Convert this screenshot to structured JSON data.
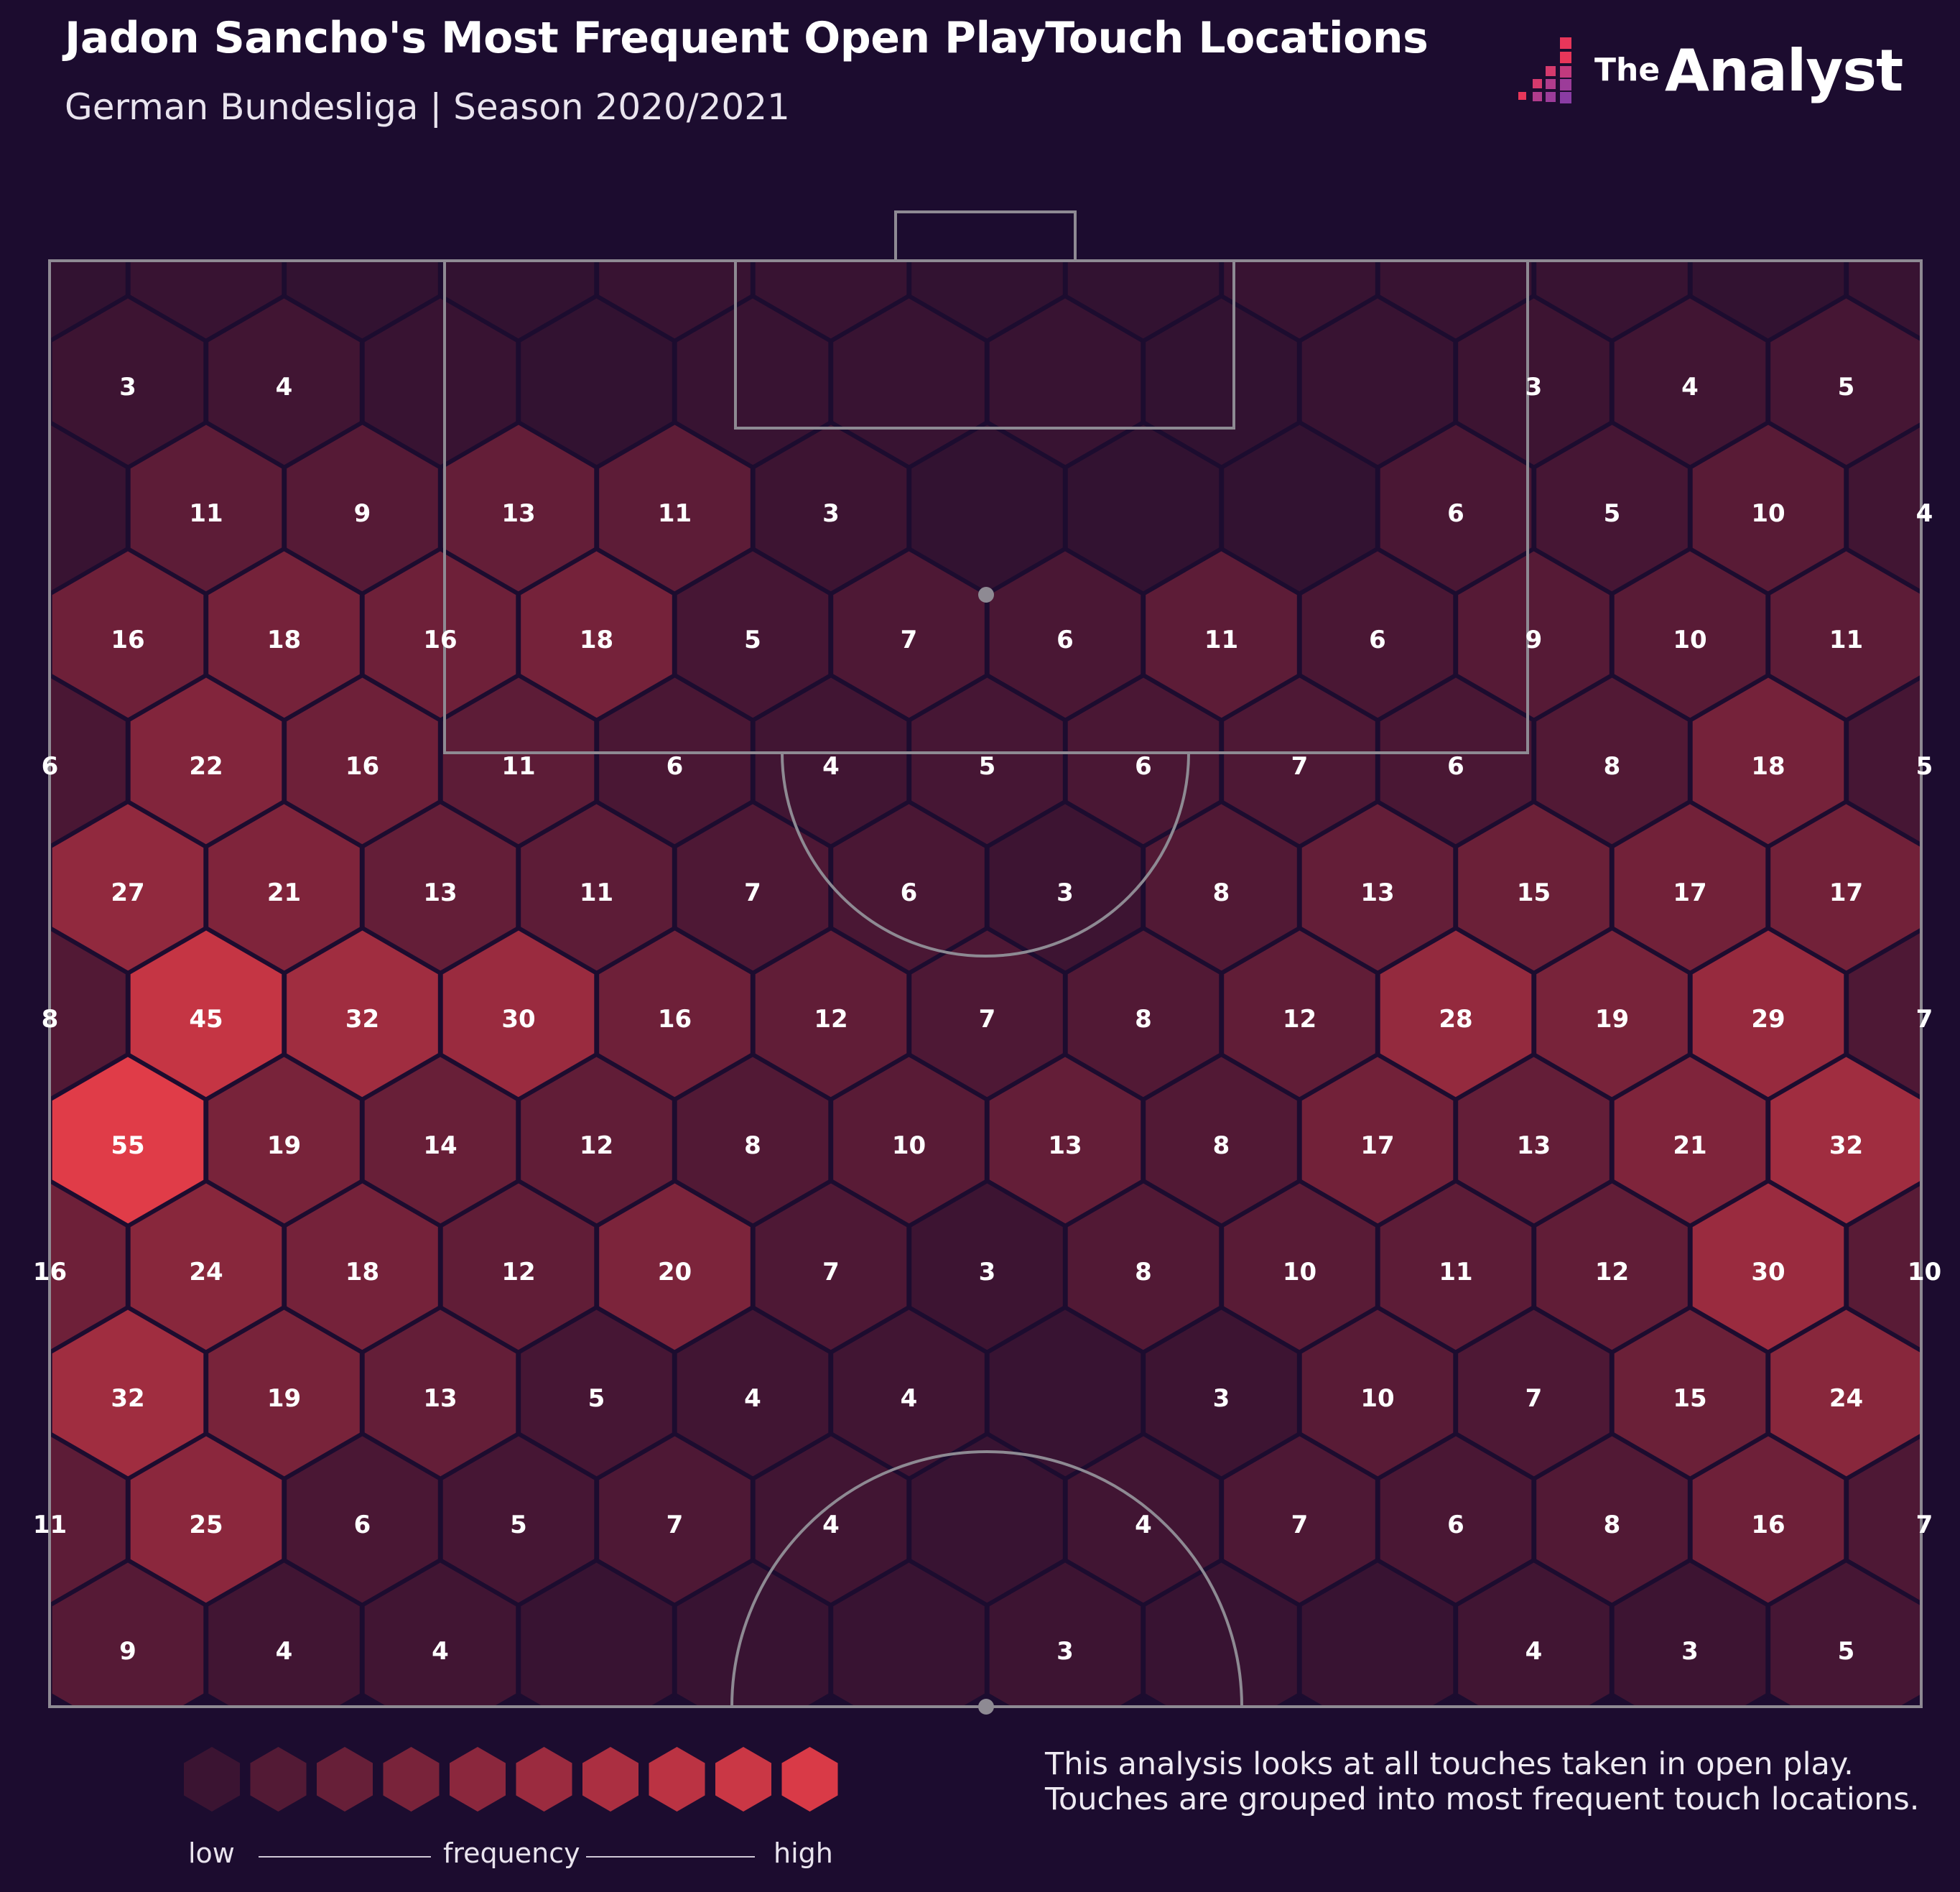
{
  "header": {
    "title": "Jadon Sancho's Most Frequent Open PlayTouch Locations",
    "subtitle": "German Bundesliga | Season 2020/2021"
  },
  "brand": {
    "the": "The",
    "name": "Analyst"
  },
  "colors": {
    "background": "#1c0c2f",
    "hex_low": "#2b1030",
    "hex_high": "#e03c48",
    "hex_border": "#1c0c2f",
    "pitch_lines": "#8e8a93"
  },
  "legend": {
    "low": "low",
    "mid": "frequency",
    "high": "high",
    "steps": 10
  },
  "footnote": "This analysis looks at all touches taken in open play. Touches are grouped into most frequent touch locations.",
  "chart_data": {
    "type": "heatmap",
    "title": "Jadon Sancho's Most Frequent Open PlayTouch Locations",
    "subtitle": "German Bundesliga | Season 2020/2021",
    "grid": "hexagonal",
    "max_value": 55,
    "rows": [
      {
        "offset": true,
        "labels": [
          "",
          "",
          "",
          "",
          "",
          "",
          "",
          "",
          "",
          "",
          "",
          "",
          ""
        ],
        "values": [
          1,
          2,
          1,
          1,
          2,
          2,
          1,
          1,
          2,
          2,
          2,
          1,
          2
        ]
      },
      {
        "offset": false,
        "labels": [
          "3",
          "4",
          "",
          "",
          "",
          "",
          "",
          "",
          "",
          "3",
          "4",
          "5"
        ],
        "values": [
          3,
          4,
          2,
          1,
          2,
          2,
          2,
          1,
          2,
          3,
          4,
          5
        ]
      },
      {
        "offset": true,
        "labels": [
          "",
          "11",
          "9",
          "13",
          "11",
          "3",
          "",
          "",
          "",
          "6",
          "5",
          "10",
          "4"
        ],
        "values": [
          2,
          11,
          9,
          13,
          11,
          3,
          1,
          1,
          1,
          6,
          5,
          10,
          4
        ]
      },
      {
        "offset": false,
        "labels": [
          "16",
          "18",
          "16",
          "18",
          "5",
          "7",
          "6",
          "11",
          "6",
          "9",
          "10",
          "11"
        ],
        "values": [
          16,
          18,
          16,
          18,
          5,
          7,
          6,
          11,
          6,
          9,
          10,
          11
        ]
      },
      {
        "offset": true,
        "labels": [
          "6",
          "22",
          "16",
          "11",
          "6",
          "4",
          "5",
          "6",
          "7",
          "6",
          "8",
          "18",
          "5"
        ],
        "values": [
          6,
          22,
          16,
          11,
          6,
          4,
          5,
          6,
          7,
          6,
          8,
          18,
          5
        ]
      },
      {
        "offset": false,
        "labels": [
          "27",
          "21",
          "13",
          "11",
          "7",
          "6",
          "3",
          "8",
          "13",
          "15",
          "17",
          "17"
        ],
        "values": [
          27,
          21,
          13,
          11,
          7,
          6,
          3,
          8,
          13,
          15,
          17,
          17
        ]
      },
      {
        "offset": true,
        "labels": [
          "8",
          "45",
          "32",
          "30",
          "16",
          "12",
          "7",
          "8",
          "12",
          "28",
          "19",
          "29",
          "7"
        ],
        "values": [
          8,
          45,
          32,
          30,
          16,
          12,
          7,
          8,
          12,
          28,
          19,
          29,
          7
        ]
      },
      {
        "offset": false,
        "labels": [
          "55",
          "19",
          "14",
          "12",
          "8",
          "10",
          "13",
          "8",
          "17",
          "13",
          "21",
          "32"
        ],
        "values": [
          55,
          19,
          14,
          12,
          8,
          10,
          13,
          8,
          17,
          13,
          21,
          32
        ]
      },
      {
        "offset": true,
        "labels": [
          "16",
          "24",
          "18",
          "12",
          "20",
          "7",
          "3",
          "8",
          "10",
          "11",
          "12",
          "30",
          "10"
        ],
        "values": [
          16,
          24,
          18,
          12,
          20,
          7,
          3,
          8,
          10,
          11,
          12,
          30,
          10
        ]
      },
      {
        "offset": false,
        "labels": [
          "32",
          "19",
          "13",
          "5",
          "4",
          "4",
          "",
          "3",
          "10",
          "7",
          "15",
          "24"
        ],
        "values": [
          32,
          19,
          13,
          5,
          4,
          4,
          2,
          3,
          10,
          7,
          15,
          24
        ]
      },
      {
        "offset": true,
        "labels": [
          "11",
          "25",
          "6",
          "5",
          "7",
          "4",
          "",
          "4",
          "7",
          "6",
          "8",
          "16",
          "7"
        ],
        "values": [
          11,
          25,
          6,
          5,
          7,
          4,
          2,
          4,
          7,
          6,
          8,
          16,
          7
        ]
      },
      {
        "offset": false,
        "labels": [
          "9",
          "4",
          "4",
          "",
          "",
          "",
          "3",
          "",
          "",
          "4",
          "3",
          "5"
        ],
        "values": [
          9,
          4,
          4,
          2,
          2,
          2,
          3,
          2,
          2,
          4,
          3,
          5
        ]
      }
    ]
  }
}
